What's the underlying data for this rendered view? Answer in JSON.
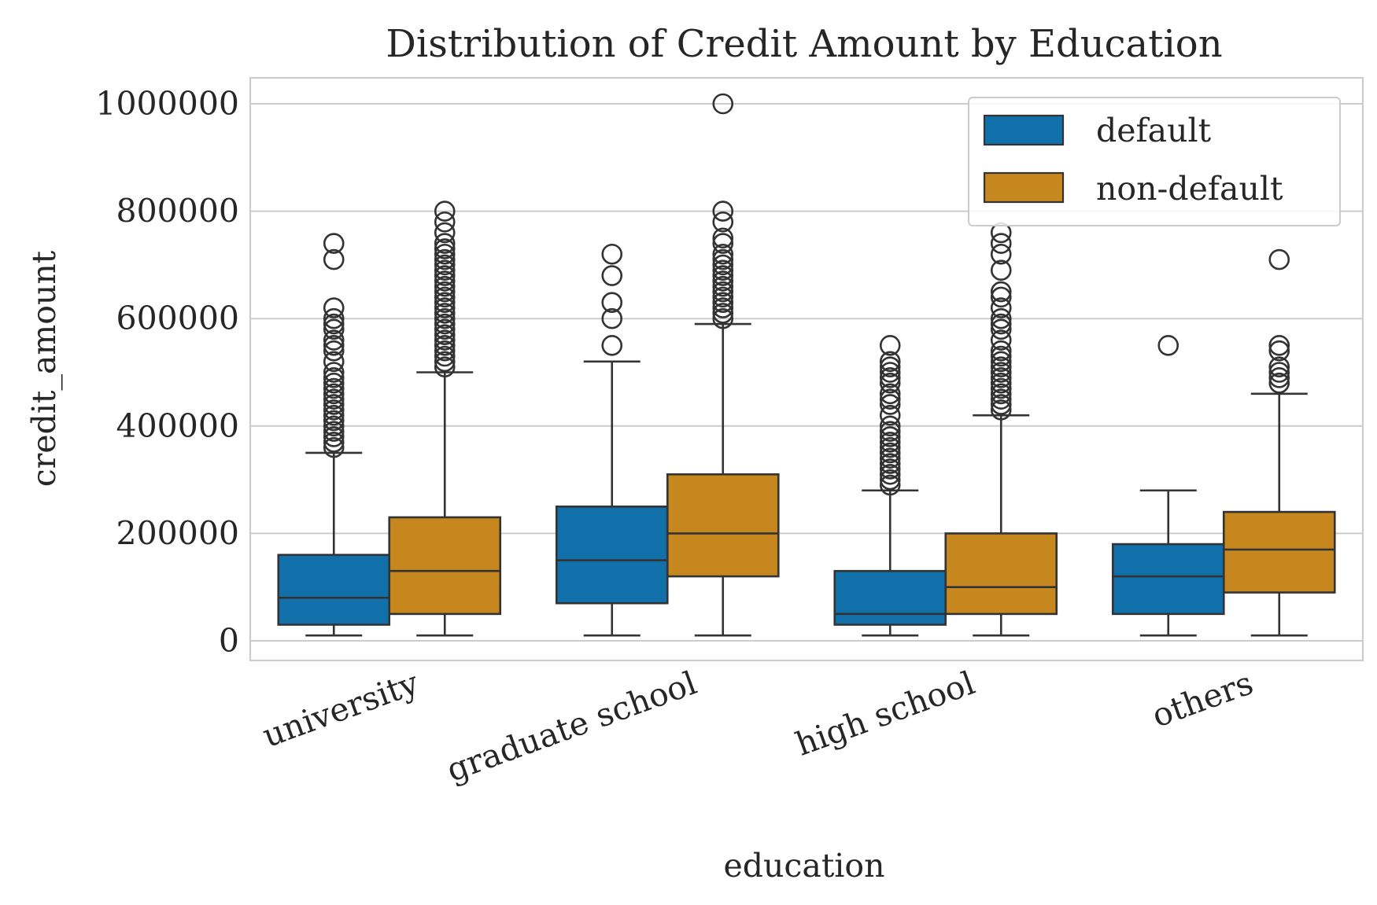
{
  "chart_data": {
    "type": "box",
    "title": "Distribution of Credit Amount by Education",
    "xlabel": "education",
    "ylabel": "credit_amount",
    "categories": [
      "university",
      "graduate school",
      "high school",
      "others"
    ],
    "yticks": [
      0,
      200000,
      400000,
      600000,
      800000,
      1000000
    ],
    "yticklabels": [
      "0",
      "200000",
      "400000",
      "600000",
      "800000",
      "1000000"
    ],
    "ylim": [
      -35000,
      1050000
    ],
    "grid": true,
    "legend": {
      "position": "top-right"
    },
    "series": [
      {
        "name": "default",
        "color": "#1170aa",
        "boxes": [
          {
            "whislo": 10000,
            "q1": 30000,
            "med": 80000,
            "q3": 160000,
            "whishi": 350000,
            "fliers": [
              360000,
              370000,
              380000,
              390000,
              400000,
              410000,
              420000,
              430000,
              440000,
              450000,
              460000,
              470000,
              480000,
              490000,
              500000,
              520000,
              540000,
              550000,
              560000,
              580000,
              590000,
              600000,
              620000,
              710000,
              740000
            ]
          },
          {
            "whislo": 10000,
            "q1": 70000,
            "med": 150000,
            "q3": 250000,
            "whishi": 520000,
            "fliers": [
              550000,
              600000,
              630000,
              680000,
              720000
            ]
          },
          {
            "whislo": 10000,
            "q1": 30000,
            "med": 50000,
            "q3": 130000,
            "whishi": 280000,
            "fliers": [
              290000,
              300000,
              310000,
              320000,
              330000,
              340000,
              350000,
              360000,
              370000,
              380000,
              390000,
              400000,
              420000,
              440000,
              450000,
              460000,
              480000,
              490000,
              500000,
              510000,
              520000,
              550000
            ]
          },
          {
            "whislo": 10000,
            "q1": 50000,
            "med": 120000,
            "q3": 180000,
            "whishi": 280000,
            "fliers": [
              550000
            ]
          }
        ]
      },
      {
        "name": "non-default",
        "color": "#c5871e",
        "boxes": [
          {
            "whislo": 10000,
            "q1": 50000,
            "med": 130000,
            "q3": 230000,
            "whishi": 500000,
            "fliers": [
              510000,
              520000,
              530000,
              540000,
              550000,
              560000,
              570000,
              580000,
              590000,
              600000,
              610000,
              620000,
              630000,
              640000,
              650000,
              660000,
              670000,
              680000,
              690000,
              700000,
              710000,
              720000,
              730000,
              740000,
              760000,
              780000,
              800000
            ]
          },
          {
            "whislo": 10000,
            "q1": 120000,
            "med": 200000,
            "q3": 310000,
            "whishi": 590000,
            "fliers": [
              600000,
              610000,
              620000,
              630000,
              640000,
              650000,
              660000,
              670000,
              680000,
              690000,
              700000,
              710000,
              720000,
              740000,
              750000,
              780000,
              800000,
              1000000
            ]
          },
          {
            "whislo": 10000,
            "q1": 50000,
            "med": 100000,
            "q3": 200000,
            "whishi": 420000,
            "fliers": [
              430000,
              440000,
              450000,
              460000,
              470000,
              480000,
              490000,
              500000,
              510000,
              520000,
              530000,
              540000,
              560000,
              580000,
              590000,
              600000,
              620000,
              640000,
              650000,
              690000,
              720000,
              740000,
              760000
            ]
          },
          {
            "whislo": 10000,
            "q1": 90000,
            "med": 170000,
            "q3": 240000,
            "whishi": 460000,
            "fliers": [
              480000,
              490000,
              500000,
              510000,
              540000,
              550000,
              710000
            ]
          }
        ]
      }
    ]
  }
}
